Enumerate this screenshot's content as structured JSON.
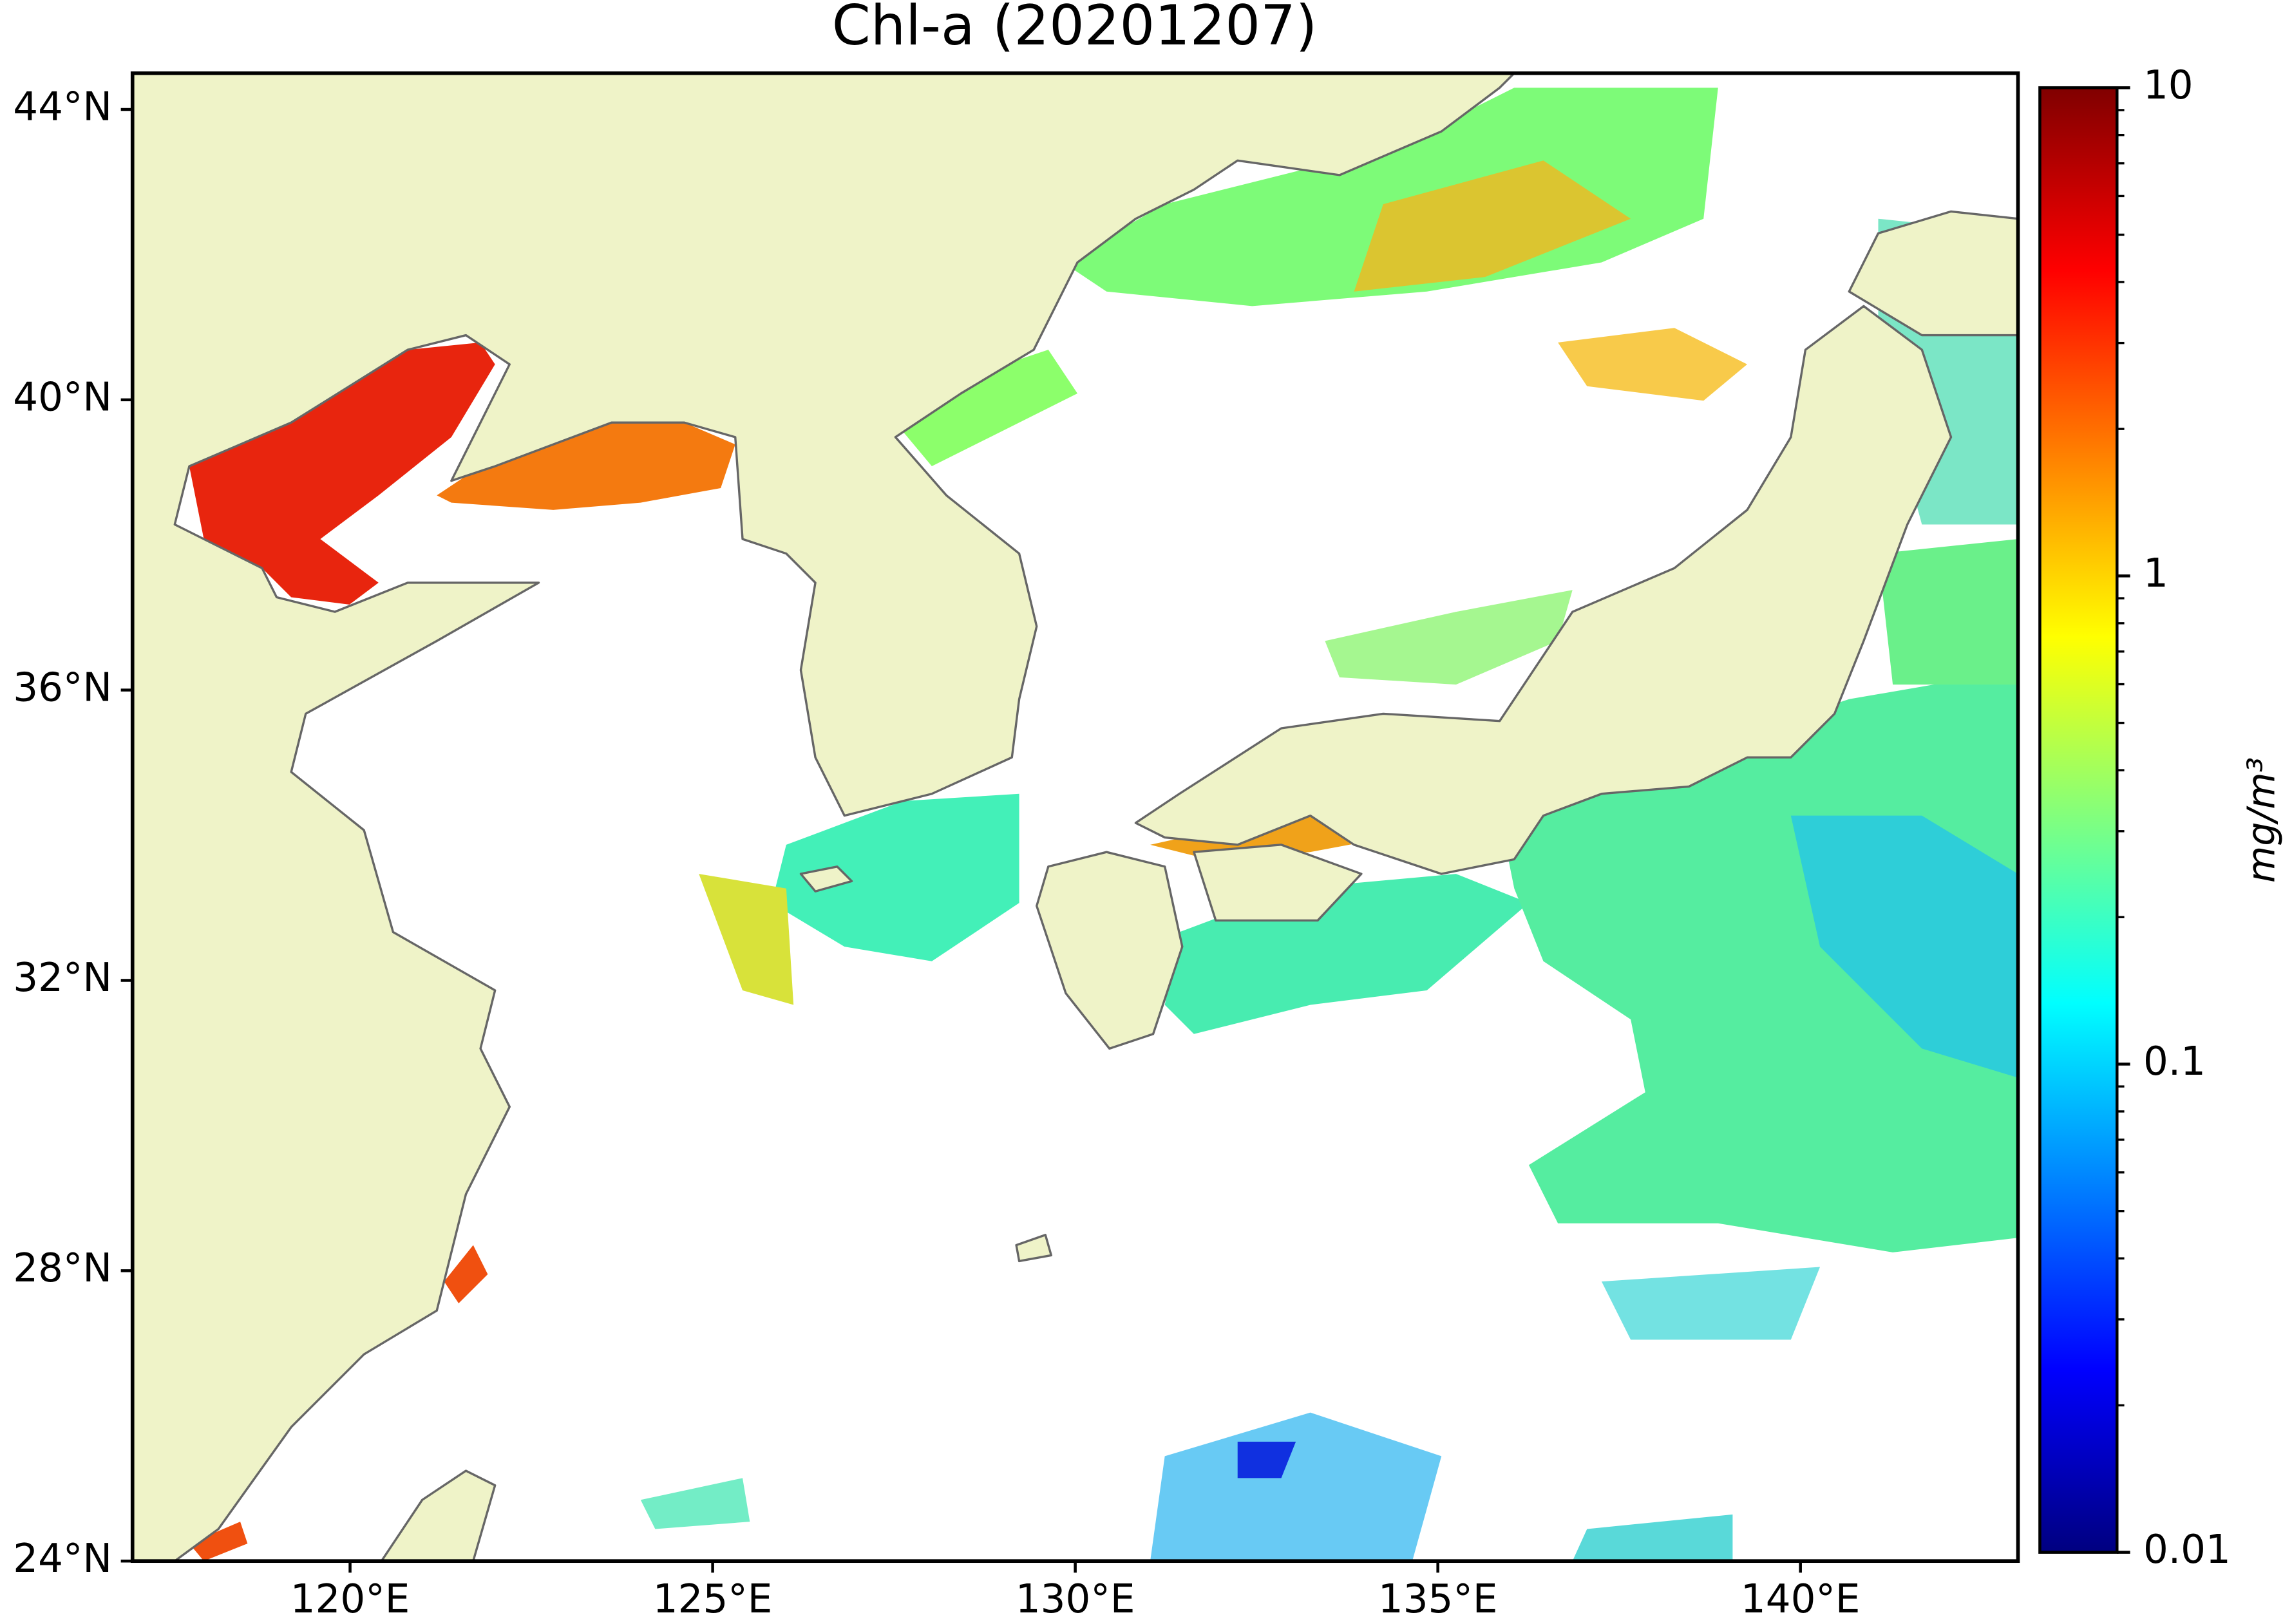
{
  "chart_data": {
    "type": "map",
    "title": "Chl-a (20201207)",
    "xlim": [
      117,
      143
    ],
    "ylim": [
      24,
      44.5
    ],
    "xticks": [
      {
        "value": 120,
        "label": "120°E"
      },
      {
        "value": 125,
        "label": "125°E"
      },
      {
        "value": 130,
        "label": "130°E"
      },
      {
        "value": 135,
        "label": "135°E"
      },
      {
        "value": 140,
        "label": "140°E"
      }
    ],
    "yticks": [
      {
        "value": 24,
        "label": "24°N"
      },
      {
        "value": 28,
        "label": "28°N"
      },
      {
        "value": 32,
        "label": "32°N"
      },
      {
        "value": 36,
        "label": "36°N"
      },
      {
        "value": 40,
        "label": "40°N"
      },
      {
        "value": 44,
        "label": "44°N"
      }
    ],
    "land_color": "#eff3c8",
    "colorbar": {
      "label": "mg/m³",
      "lim": [
        0.01,
        10
      ],
      "ticks": [
        0.01,
        0.1,
        1,
        10
      ],
      "scale": "log",
      "colormap": "jet"
    }
  }
}
